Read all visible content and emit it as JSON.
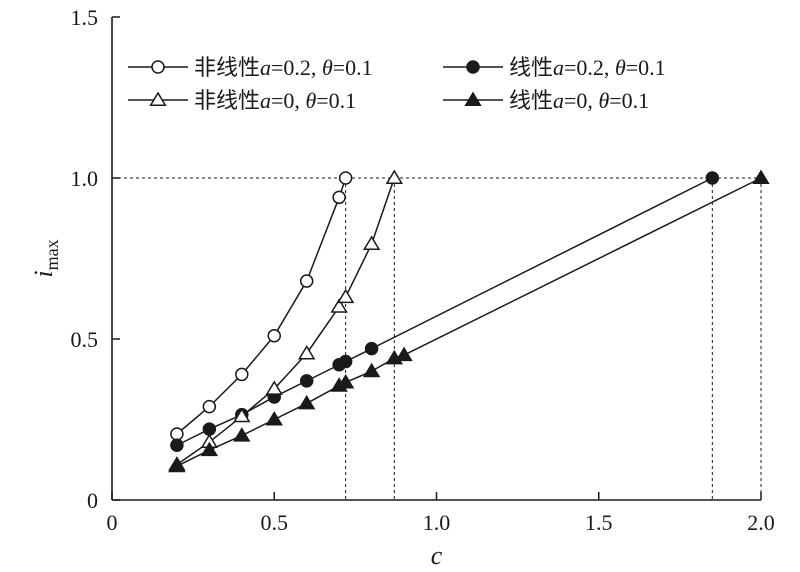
{
  "chart_data": {
    "type": "line",
    "xlabel": "c",
    "ylabel": "i",
    "ylabel_sub": "max",
    "xlim": [
      0,
      2.0
    ],
    "ylim": [
      0,
      1.5
    ],
    "xticks": [
      0,
      0.5,
      1.0,
      1.5,
      2.0
    ],
    "xtick_labels": [
      "0",
      "0.5",
      "1.0",
      "1.5",
      "2.0"
    ],
    "yticks": [
      0,
      0.5,
      1.0,
      1.5
    ],
    "ytick_labels": [
      "0",
      "0.5",
      "1.0",
      "1.5"
    ],
    "grid": false,
    "legend_position": "top",
    "reference_lines": {
      "horizontal_y": 1.0,
      "vertical_x": [
        0.72,
        0.87,
        1.85,
        2.0
      ]
    },
    "series": [
      {
        "name_prefix": "非线性",
        "name_var": "a",
        "name_mid": "=0.2, ",
        "name_theta": "θ",
        "name_suffix": "=0.1",
        "marker": "open-circle",
        "x": [
          0.2,
          0.3,
          0.4,
          0.5,
          0.6,
          0.7,
          0.72
        ],
        "y": [
          0.205,
          0.29,
          0.39,
          0.51,
          0.68,
          0.94,
          1.0
        ]
      },
      {
        "name_prefix": "线性",
        "name_var": "a",
        "name_mid": "=0.2, ",
        "name_theta": "θ",
        "name_suffix": "=0.1",
        "marker": "filled-circle",
        "x": [
          0.2,
          0.3,
          0.4,
          0.5,
          0.6,
          0.7,
          0.72,
          0.8,
          1.85
        ],
        "y": [
          0.17,
          0.22,
          0.265,
          0.32,
          0.37,
          0.42,
          0.43,
          0.47,
          1.0
        ]
      },
      {
        "name_prefix": "非线性",
        "name_var": "a",
        "name_mid": "=0, ",
        "name_theta": "θ",
        "name_suffix": "=0.1",
        "marker": "open-triangle",
        "x": [
          0.2,
          0.3,
          0.4,
          0.5,
          0.6,
          0.7,
          0.72,
          0.8,
          0.87
        ],
        "y": [
          0.11,
          0.18,
          0.26,
          0.345,
          0.455,
          0.6,
          0.63,
          0.795,
          1.0
        ]
      },
      {
        "name_prefix": "线性",
        "name_var": "a",
        "name_mid": "=0, ",
        "name_theta": "θ",
        "name_suffix": "=0.1",
        "marker": "filled-triangle",
        "x": [
          0.2,
          0.3,
          0.4,
          0.5,
          0.6,
          0.7,
          0.72,
          0.8,
          0.87,
          0.9,
          2.0
        ],
        "y": [
          0.105,
          0.155,
          0.2,
          0.25,
          0.3,
          0.355,
          0.365,
          0.4,
          0.44,
          0.45,
          1.0
        ]
      }
    ]
  }
}
